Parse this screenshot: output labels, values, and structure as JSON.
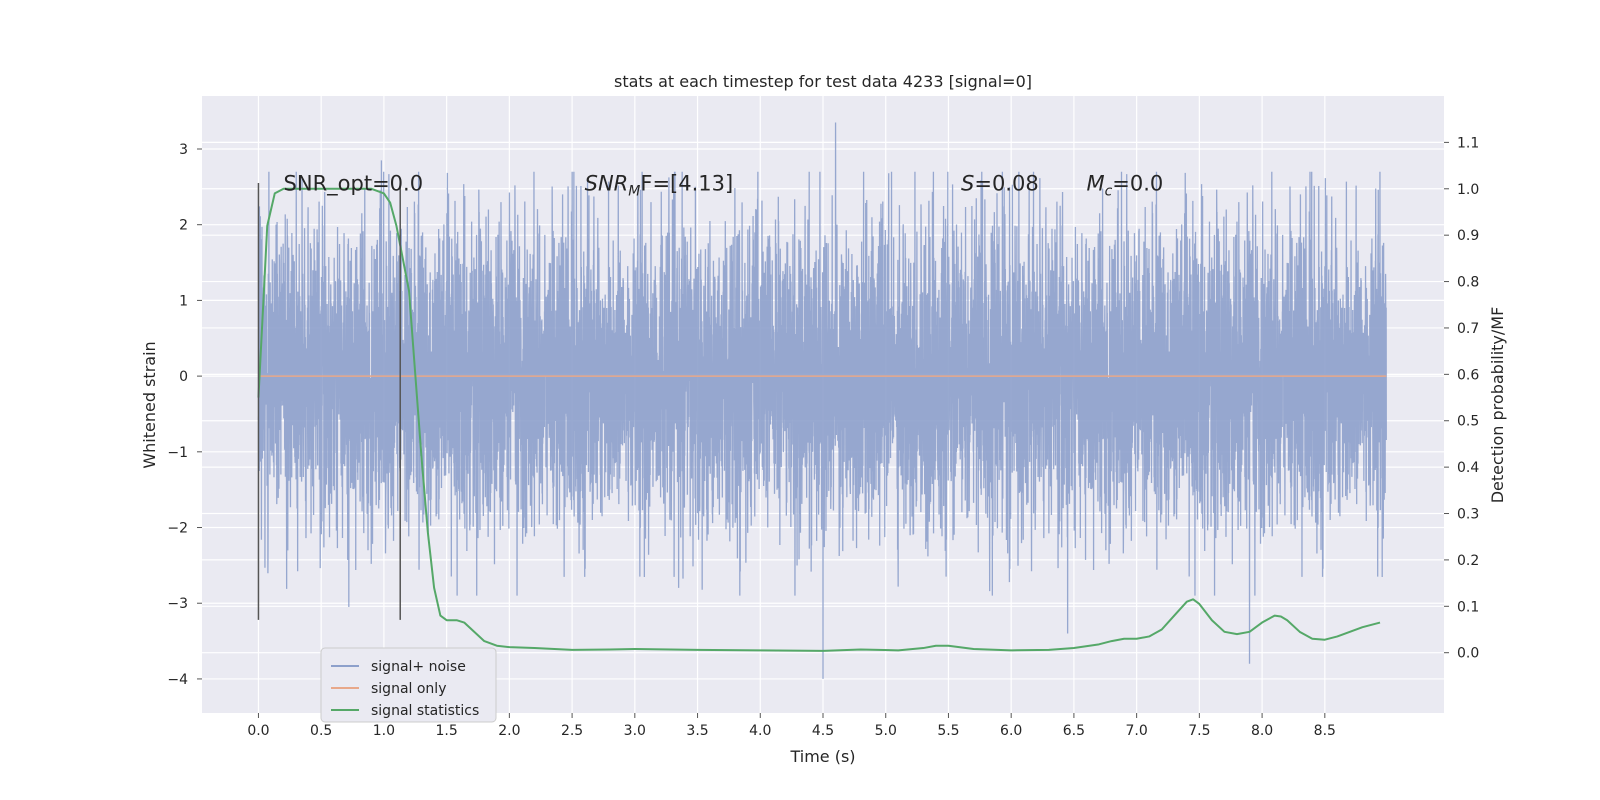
{
  "chart_data": {
    "type": "line",
    "title": "stats at each timestep for test data 4233 [signal=0]",
    "xlabel": "Time (s)",
    "ylabel_left": "Whitened strain",
    "ylabel_right": "Detection probability/MF",
    "xlim": [
      -0.45,
      9.45
    ],
    "ylim_left": [
      -4.45,
      3.7
    ],
    "ylim_right": [
      -0.13,
      1.2
    ],
    "x_ticks": [
      0.0,
      0.5,
      1.0,
      1.5,
      2.0,
      2.5,
      3.0,
      3.5,
      4.0,
      4.5,
      5.0,
      5.5,
      6.0,
      6.5,
      7.0,
      7.5,
      8.0,
      8.5
    ],
    "x_tick_labels": [
      "0.0",
      "0.5",
      "1.0",
      "1.5",
      "2.0",
      "2.5",
      "3.0",
      "3.5",
      "4.0",
      "4.5",
      "5.0",
      "5.5",
      "6.0",
      "6.5",
      "7.0",
      "7.5",
      "8.0",
      "8.5"
    ],
    "y_left_ticks": [
      3,
      2,
      1,
      0,
      -1,
      -2,
      -3,
      -4
    ],
    "y_left_tick_labels": [
      "3",
      "2",
      "1",
      "0",
      "−1",
      "−2",
      "−3",
      "−4"
    ],
    "y_right_ticks": [
      1.1,
      1.0,
      0.9,
      0.8,
      0.7,
      0.6,
      0.5,
      0.4,
      0.3,
      0.2,
      0.1,
      0.0
    ],
    "y_right_tick_labels": [
      "1.1",
      "1.0",
      "0.9",
      "0.8",
      "0.7",
      "0.6",
      "0.5",
      "0.4",
      "0.3",
      "0.2",
      "0.1",
      "0.0"
    ],
    "grid": true,
    "legend_position": "lower-left",
    "legend": [
      {
        "label": "signal+ noise",
        "color": "#8da0cb"
      },
      {
        "label": "signal only",
        "color": "#e8a88a"
      },
      {
        "label": "signal statistics",
        "color": "#55a868"
      }
    ],
    "series": [
      {
        "name": "signal+ noise",
        "axis": "left",
        "color": "#8da0cb",
        "x_range": [
          0.0,
          8.99
        ],
        "n_points": 8000,
        "typical_amplitude": 1.0,
        "notable_extremes": [
          {
            "x": 4.6,
            "y": 3.35
          },
          {
            "x": 4.5,
            "y": -4.0
          },
          {
            "x": 7.9,
            "y": -3.8
          },
          {
            "x": 6.45,
            "y": -3.4
          },
          {
            "x": 0.72,
            "y": -3.05
          },
          {
            "x": 0.98,
            "y": 2.85
          }
        ]
      },
      {
        "name": "signal only",
        "axis": "left",
        "color": "#e8a88a",
        "x": [
          0.0,
          8.99
        ],
        "y": [
          0.0,
          0.0
        ]
      },
      {
        "name": "signal statistics",
        "axis": "right",
        "color": "#55a868",
        "x": [
          0.0,
          0.07,
          0.13,
          0.2,
          0.3,
          0.45,
          0.6,
          0.75,
          0.9,
          1.0,
          1.05,
          1.1,
          1.15,
          1.2,
          1.25,
          1.3,
          1.35,
          1.4,
          1.45,
          1.5,
          1.58,
          1.64,
          1.7,
          1.8,
          1.9,
          2.0,
          2.2,
          2.5,
          2.8,
          3.0,
          3.5,
          4.0,
          4.5,
          4.8,
          5.1,
          5.3,
          5.4,
          5.5,
          5.7,
          6.0,
          6.3,
          6.5,
          6.7,
          6.8,
          6.9,
          7.0,
          7.1,
          7.2,
          7.3,
          7.4,
          7.45,
          7.5,
          7.6,
          7.7,
          7.8,
          7.9,
          8.0,
          8.1,
          8.15,
          8.2,
          8.3,
          8.4,
          8.5,
          8.6,
          8.7,
          8.8,
          8.94
        ],
        "y": [
          0.55,
          0.92,
          0.99,
          1.0,
          1.0,
          1.0,
          1.0,
          1.0,
          1.0,
          0.99,
          0.97,
          0.92,
          0.85,
          0.78,
          0.6,
          0.42,
          0.26,
          0.14,
          0.08,
          0.07,
          0.07,
          0.065,
          0.05,
          0.025,
          0.015,
          0.012,
          0.01,
          0.006,
          0.007,
          0.008,
          0.006,
          0.005,
          0.004,
          0.007,
          0.005,
          0.01,
          0.015,
          0.015,
          0.008,
          0.005,
          0.006,
          0.01,
          0.018,
          0.025,
          0.03,
          0.03,
          0.035,
          0.05,
          0.08,
          0.11,
          0.115,
          0.105,
          0.07,
          0.045,
          0.04,
          0.045,
          0.065,
          0.08,
          0.078,
          0.07,
          0.045,
          0.03,
          0.028,
          0.035,
          0.045,
          0.055,
          0.065
        ]
      }
    ],
    "vertical_markers": [
      {
        "x": 0.0,
        "y_range": [
          -3.22,
          2.55
        ],
        "color": "#555555"
      },
      {
        "x": 1.13,
        "y_range": [
          -3.22,
          2.55
        ],
        "color": "#555555"
      }
    ],
    "annotations": [
      {
        "text": "SNR_opt=0.0",
        "x": 0.2,
        "y": 2.45
      },
      {
        "text": "SNR",
        "sub": "M",
        "tail": "F=[4.13]",
        "x": 2.6,
        "y": 2.45
      },
      {
        "text": "S",
        "tail": "=0.08",
        "x": 5.6,
        "y": 2.45
      },
      {
        "text": "M",
        "sub": "c",
        "tail": "=0.0",
        "x": 6.6,
        "y": 2.45
      }
    ]
  }
}
